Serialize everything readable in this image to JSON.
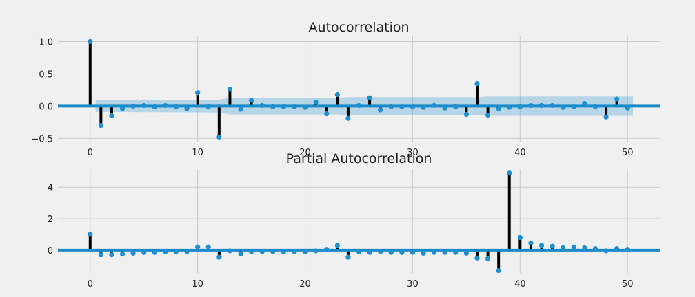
{
  "chart_data": [
    {
      "type": "bar",
      "title": "Autocorrelation",
      "xlim": [
        -3,
        53
      ],
      "ylim": [
        -0.55,
        1.08
      ],
      "xticks": [
        0,
        10,
        20,
        30,
        40,
        50
      ],
      "yticks": [
        -0.5,
        0.0,
        0.5,
        1.0
      ],
      "ytick_labels": [
        "−0.5",
        "0.0",
        "0.5",
        "1.0"
      ],
      "grid": true,
      "confidence_band": {
        "lags": [
          1,
          12,
          13,
          23,
          24,
          36,
          37,
          50
        ],
        "halfwidth": [
          0.09,
          0.1,
          0.13,
          0.13,
          0.14,
          0.14,
          0.15,
          0.15
        ]
      },
      "lags": [
        0,
        1,
        2,
        3,
        4,
        5,
        6,
        7,
        8,
        9,
        10,
        11,
        12,
        13,
        14,
        15,
        16,
        17,
        18,
        19,
        20,
        21,
        22,
        23,
        24,
        25,
        26,
        27,
        28,
        29,
        30,
        31,
        32,
        33,
        34,
        35,
        36,
        37,
        38,
        39,
        40,
        41,
        42,
        43,
        44,
        45,
        46,
        47,
        48,
        49,
        50
      ],
      "values": [
        1.0,
        -0.3,
        -0.15,
        -0.04,
        0.0,
        0.01,
        -0.01,
        0.01,
        -0.01,
        -0.04,
        0.21,
        -0.01,
        -0.48,
        0.26,
        -0.05,
        0.09,
        0.01,
        -0.01,
        -0.01,
        -0.01,
        -0.02,
        0.06,
        -0.12,
        0.18,
        -0.19,
        0.01,
        0.13,
        -0.06,
        -0.01,
        -0.01,
        -0.01,
        -0.02,
        0.01,
        -0.03,
        -0.01,
        -0.13,
        0.35,
        -0.14,
        -0.04,
        -0.02,
        -0.01,
        0.01,
        0.01,
        0.01,
        -0.02,
        -0.01,
        0.04,
        -0.01,
        -0.17,
        0.11,
        -0.03
      ]
    },
    {
      "type": "bar",
      "title": "Partial Autocorrelation",
      "xlim": [
        -3,
        53
      ],
      "ylim": [
        -1.45,
        5.15
      ],
      "xticks": [
        0,
        10,
        20,
        30,
        40,
        50
      ],
      "yticks": [
        0,
        2,
        4
      ],
      "ytick_labels": [
        "0",
        "2",
        "4"
      ],
      "grid": true,
      "lags": [
        0,
        1,
        2,
        3,
        4,
        5,
        6,
        7,
        8,
        9,
        10,
        11,
        12,
        13,
        14,
        15,
        16,
        17,
        18,
        19,
        20,
        21,
        22,
        23,
        24,
        25,
        26,
        27,
        28,
        29,
        30,
        31,
        32,
        33,
        34,
        35,
        36,
        37,
        38,
        39,
        40,
        41,
        42,
        43,
        44,
        45,
        46,
        47,
        48,
        49,
        50
      ],
      "values": [
        1.0,
        -0.3,
        -0.3,
        -0.25,
        -0.2,
        -0.15,
        -0.15,
        -0.1,
        -0.1,
        -0.1,
        0.2,
        0.2,
        -0.45,
        -0.05,
        -0.25,
        -0.1,
        -0.1,
        -0.1,
        -0.1,
        -0.1,
        -0.1,
        -0.05,
        0.05,
        0.3,
        -0.45,
        -0.1,
        -0.15,
        -0.1,
        -0.15,
        -0.15,
        -0.15,
        -0.2,
        -0.15,
        -0.15,
        -0.15,
        -0.2,
        -0.5,
        -0.55,
        -1.3,
        4.9,
        0.8,
        0.45,
        0.3,
        0.25,
        0.15,
        0.2,
        0.15,
        0.1,
        -0.05,
        0.1,
        0.05
      ]
    }
  ]
}
